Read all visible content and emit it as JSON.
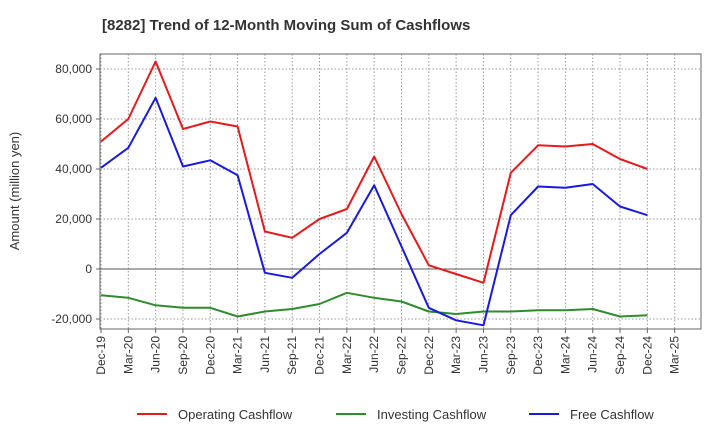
{
  "chart_data": {
    "type": "line",
    "title": "[8282]  Trend of 12-Month Moving Sum of Cashflows",
    "xlabel": "",
    "ylabel": "Amount (million yen)",
    "ylim": [
      -24000,
      86000
    ],
    "yticks": [
      -20000,
      0,
      20000,
      40000,
      60000,
      80000
    ],
    "ytick_labels": [
      "-20,000",
      "0",
      "20,000",
      "40,000",
      "60,000",
      "80,000"
    ],
    "grid": true,
    "legend_position": "bottom",
    "x": [
      "Dec-19",
      "Mar-20",
      "Jun-20",
      "Sep-20",
      "Dec-20",
      "Mar-21",
      "Jun-21",
      "Sep-21",
      "Dec-21",
      "Mar-22",
      "Jun-22",
      "Sep-22",
      "Dec-22",
      "Mar-23",
      "Jun-23",
      "Sep-23",
      "Dec-23",
      "Mar-24",
      "Jun-24",
      "Sep-24",
      "Dec-24",
      "Mar-25"
    ],
    "series": [
      {
        "name": "Operating Cashflow",
        "color": "#e41a1c",
        "values": [
          51000,
          60000,
          83000,
          56000,
          59000,
          57000,
          15000,
          12500,
          20000,
          24000,
          45000,
          22000,
          1500,
          -2000,
          -5500,
          38500,
          49500,
          49000,
          50000,
          44000,
          40000,
          null
        ]
      },
      {
        "name": "Investing Cashflow",
        "color": "#2e8b2e",
        "values": [
          -10500,
          -11500,
          -14500,
          -15500,
          -15500,
          -19000,
          -17000,
          -16000,
          -14000,
          -9500,
          -11500,
          -13000,
          -17000,
          -18000,
          -17000,
          -17000,
          -16500,
          -16500,
          -16000,
          -19000,
          -18500,
          null
        ]
      },
      {
        "name": "Free Cashflow",
        "color": "#1a1adf",
        "values": [
          40500,
          48500,
          68500,
          41000,
          43500,
          37500,
          -1500,
          -3500,
          6000,
          14500,
          33500,
          9000,
          -15500,
          -20500,
          -22500,
          21500,
          33000,
          32500,
          34000,
          25000,
          21500,
          null
        ]
      }
    ]
  }
}
